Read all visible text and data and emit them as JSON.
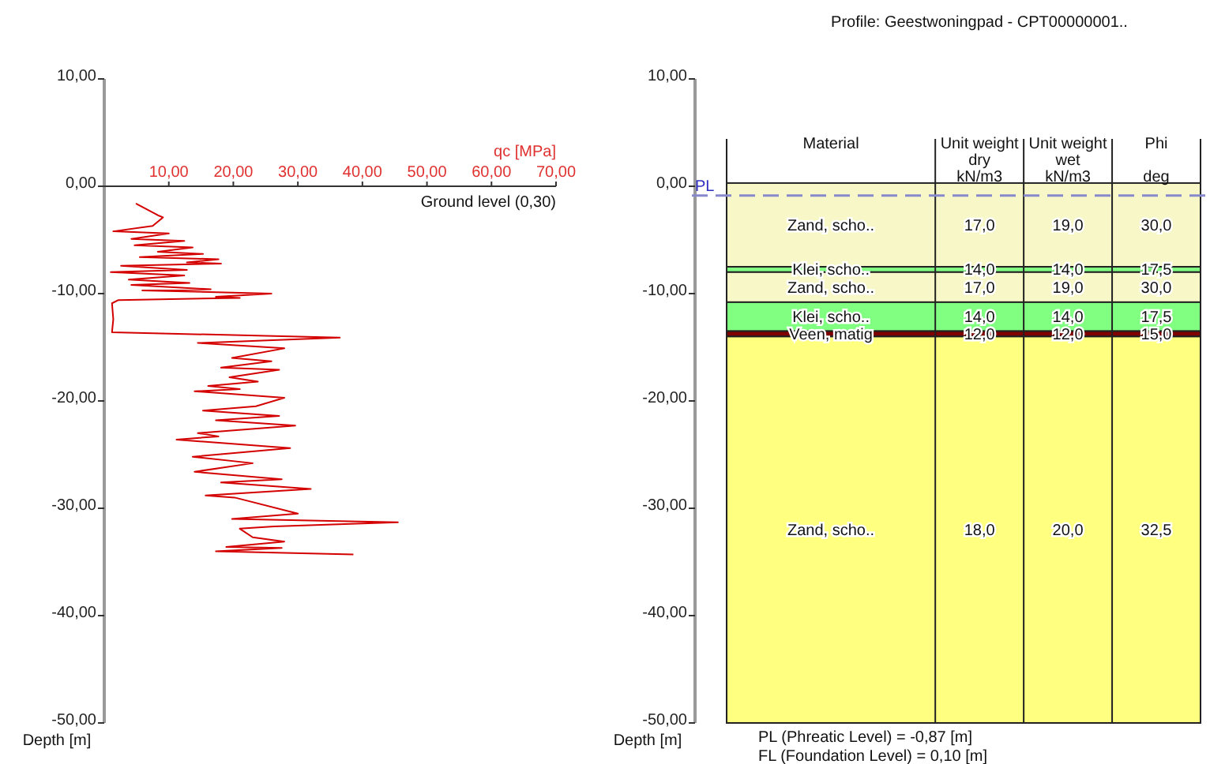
{
  "chart_data": [
    {
      "type": "line",
      "xlabel": "qc [MPa]",
      "ylabel": "Depth [m]",
      "xlim": [
        0,
        70
      ],
      "xticks": [
        {
          "value": 10,
          "label": "10,00"
        },
        {
          "value": 20,
          "label": "20,00"
        },
        {
          "value": 30,
          "label": "30,00"
        },
        {
          "value": 40,
          "label": "40,00"
        },
        {
          "value": 50,
          "label": "50,00"
        },
        {
          "value": 60,
          "label": "60,00"
        },
        {
          "value": 70,
          "label": "70,00"
        }
      ],
      "ylim": [
        -50,
        10
      ],
      "yticks": [
        {
          "value": 10,
          "label": "10,00"
        },
        {
          "value": 0,
          "label": "0,00"
        },
        {
          "value": -10,
          "label": "-10,00"
        },
        {
          "value": -20,
          "label": "-20,00"
        },
        {
          "value": -30,
          "label": "-30,00"
        },
        {
          "value": -40,
          "label": "-40,00"
        },
        {
          "value": -50,
          "label": "-50,00"
        }
      ],
      "series": [
        {
          "color": "#d40000",
          "x": [
            4.9,
            8.3,
            9.1,
            7.5,
            1.4,
            10.0,
            4.2,
            12.4,
            4.7,
            13.7,
            8.3,
            15.3,
            5.5,
            17.7,
            12.8,
            18.1,
            2.6,
            12.8,
            1.0,
            12.4,
            3.8,
            13.2,
            4.2,
            16.5,
            5.9,
            25.9,
            17.3,
            21.0,
            2.2,
            1.2,
            1.4,
            1.2,
            36.5,
            14.5,
            27.9,
            19.8,
            25.9,
            18.1,
            27.1,
            19.4,
            23.8,
            16.1,
            21.0,
            14.0,
            27.9,
            23.5,
            15.3,
            27.1,
            17.3,
            29.6,
            14.5,
            17.7,
            11.2,
            28.8,
            13.7,
            23.0,
            14.0,
            27.5,
            18.1,
            32.0,
            15.7,
            20.2,
            30.0,
            19.8,
            45.5,
            26.3,
            21.0,
            23.0,
            27.9,
            18.9,
            27.5,
            17.3,
            38.6
          ],
          "values": [
            -1.6,
            -2.7,
            -2.9,
            -3.7,
            -4.2,
            -4.4,
            -4.9,
            -5.1,
            -5.5,
            -5.7,
            -6.1,
            -6.3,
            -6.6,
            -6.8,
            -7.1,
            -7.2,
            -7.4,
            -7.8,
            -8.0,
            -8.3,
            -8.7,
            -9.0,
            -9.2,
            -9.6,
            -9.7,
            -10.0,
            -10.3,
            -10.4,
            -10.6,
            -10.9,
            -12.4,
            -13.6,
            -14.1,
            -14.6,
            -15.1,
            -16.0,
            -16.3,
            -16.9,
            -17.1,
            -17.8,
            -18.2,
            -18.6,
            -18.9,
            -19.1,
            -19.7,
            -20.5,
            -20.9,
            -21.4,
            -21.8,
            -22.3,
            -23.0,
            -23.3,
            -23.6,
            -24.4,
            -25.2,
            -25.8,
            -26.6,
            -27.3,
            -27.6,
            -28.2,
            -28.8,
            -29.0,
            -30.5,
            -31.0,
            -31.3,
            -31.7,
            -31.9,
            -32.7,
            -33.1,
            -33.6,
            -33.7,
            -34.0,
            -34.3
          ]
        }
      ],
      "annotations": [
        "Ground level (0,30)"
      ]
    },
    {
      "type": "line",
      "title": "Profile: Geestwoningpad - CPT00000001..",
      "ylabel": "Depth [m]",
      "ylim": [
        -50,
        10
      ],
      "yticks": [
        {
          "value": 10,
          "label": "10,00"
        },
        {
          "value": 0,
          "label": "0,00"
        },
        {
          "value": -10,
          "label": "-10,00"
        },
        {
          "value": -20,
          "label": "-20,00"
        },
        {
          "value": -30,
          "label": "-30,00"
        },
        {
          "value": -40,
          "label": "-40,00"
        },
        {
          "value": -50,
          "label": "-50,00"
        }
      ],
      "categories": [
        "Material",
        "Unit weight\ndry\nkN/m3",
        "Unit weight\nwet\nkN/m3",
        "Phi\n\ndeg"
      ],
      "bands": [
        {
          "axis": "y",
          "from": 0.3,
          "to": -7.5,
          "label": "Zand, scho..",
          "color": "#f7f7c8"
        },
        {
          "axis": "y",
          "from": -7.5,
          "to": -8.0,
          "label": "Klei, scho..",
          "color": "#80ff80"
        },
        {
          "axis": "y",
          "from": -8.0,
          "to": -10.8,
          "label": "Zand, scho..",
          "color": "#f7f7c8"
        },
        {
          "axis": "y",
          "from": -10.8,
          "to": -13.5,
          "label": "Klei, scho..",
          "color": "#80ff80"
        },
        {
          "axis": "y",
          "from": -13.5,
          "to": -14.0,
          "label": "Veen, matig",
          "color": "#800000"
        },
        {
          "axis": "y",
          "from": -14.0,
          "to": -50,
          "label": "Zand, scho..",
          "color": "#ffff80"
        }
      ],
      "ref_lines": [
        {
          "axis": "y",
          "value": -0.87,
          "label": "PL",
          "color": "#8888cc",
          "line_style": "dashed"
        }
      ],
      "annotations": [
        "17,0",
        "19,0",
        "30,0",
        "14,0",
        "14,0",
        "17,5",
        "17,0",
        "19,0",
        "30,0",
        "14,0",
        "14,0",
        "17,5",
        "12,0",
        "12,0",
        "15,0",
        "18,0",
        "20,0",
        "32,5",
        "PL (Phreatic Level) = -0,87 [m]",
        "FL (Foundation Level) = 0,10 [m]"
      ]
    }
  ]
}
